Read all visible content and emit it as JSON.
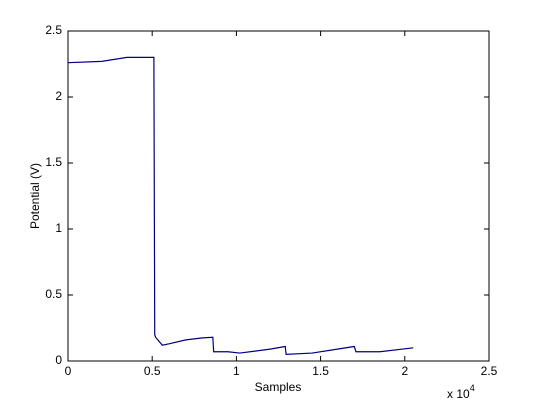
{
  "chart_data": {
    "type": "line",
    "x_label": "Samples",
    "y_label": "Potential (V)",
    "x_multiplier": "x 10",
    "x_multiplier_exp": "4",
    "x": [
      0,
      2000,
      3500,
      5100,
      5150,
      5200,
      5600,
      6000,
      7000,
      8000,
      8600,
      8650,
      9500,
      10200,
      12000,
      12900,
      12950,
      14500,
      16000,
      17000,
      17100,
      18500,
      20500
    ],
    "series": [
      {
        "color": "#000080",
        "values": [
          2.26,
          2.27,
          2.3,
          2.3,
          0.2,
          0.18,
          0.12,
          0.13,
          0.16,
          0.175,
          0.18,
          0.07,
          0.07,
          0.06,
          0.09,
          0.11,
          0.05,
          0.06,
          0.09,
          0.11,
          0.07,
          0.07,
          0.1
        ]
      }
    ],
    "xlim": [
      0,
      25000
    ],
    "xticks": [
      0,
      {
        "value": 5000,
        "label": "0.5"
      },
      {
        "value": 10000,
        "label": "1"
      },
      {
        "value": 15000,
        "label": "1.5"
      },
      {
        "value": 20000,
        "label": "2"
      },
      {
        "value": 25000,
        "label": "2.5"
      }
    ],
    "ylim": [
      0,
      2.5
    ],
    "yticks": [
      0,
      0.5,
      1,
      1.5,
      2,
      2.5
    ],
    "grid": false
  }
}
